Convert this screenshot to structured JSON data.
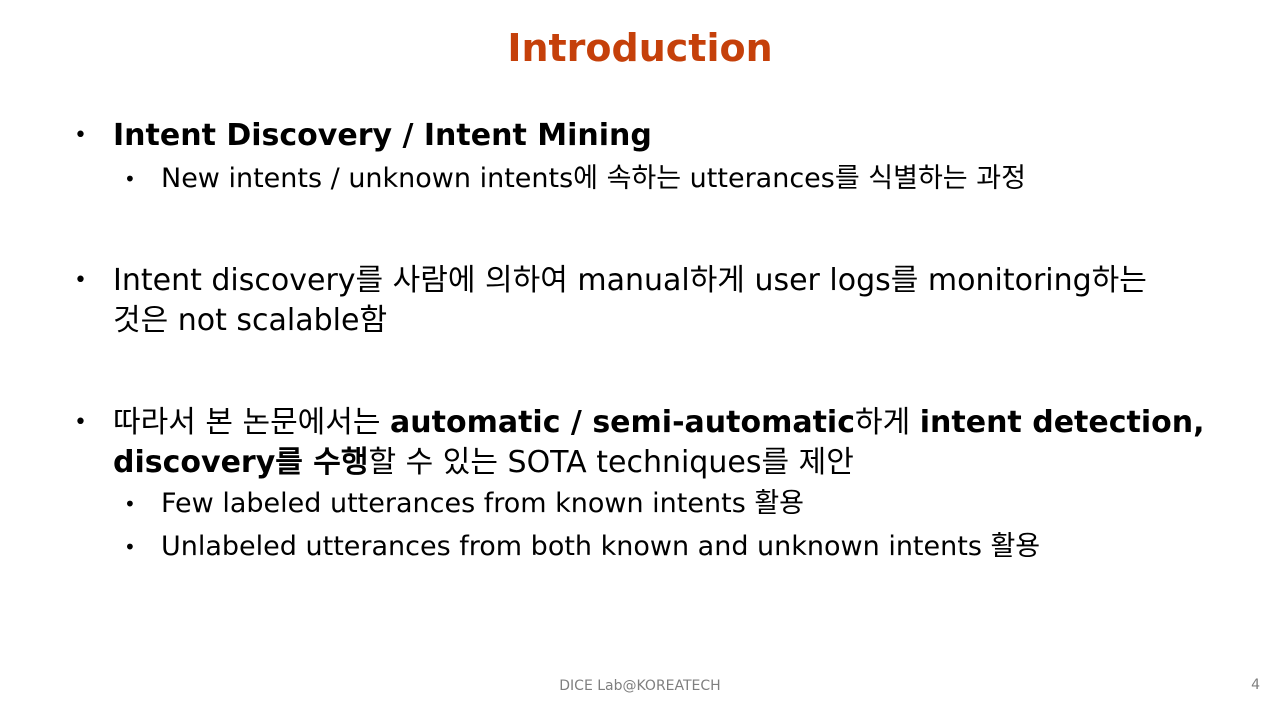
{
  "slide": {
    "title": "Introduction",
    "bullet1": {
      "bold": "Intent Discovery / Intent Mining",
      "sub1": "New intents / unknown intents에 속하는 utterances를 식별하는 과정"
    },
    "bullet2": {
      "line1": "Intent discovery를 사람에 의하여 manual하게 user logs를 monitoring하는",
      "line2": "것은 not scalable함"
    },
    "bullet3": {
      "p1": "따라서 본 논문에서는 ",
      "b1": "automatic / semi-automatic",
      "p2": "하게 ",
      "b2": "intent detection,",
      "b3": "discovery를 수행",
      "p3": "할 수 있는 SOTA techniques를 제안",
      "sub1": "Few labeled utterances from known intents 활용",
      "sub2": "Unlabeled utterances from both known and unknown intents 활용"
    },
    "bullet_symbol": "•"
  },
  "footer": {
    "text": "DICE Lab@KOREATECH",
    "page_number": "4"
  },
  "colors": {
    "title": "#c5400a",
    "footer": "#7f7f7f"
  }
}
